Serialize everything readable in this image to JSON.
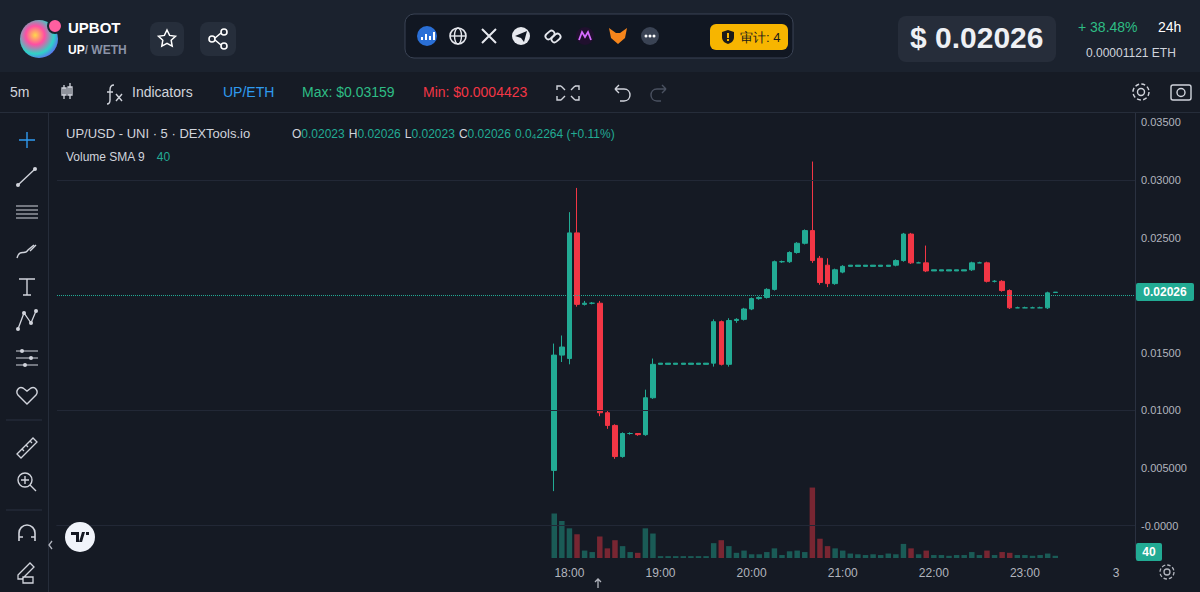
{
  "header": {
    "token": "UPBOT",
    "base": "UP",
    "quote": "/ WETH",
    "audit": "审计: 4",
    "price": "$ 0.02026",
    "change_24h": "+ 38.48%",
    "period": "24h",
    "price_eth": "0.00001121",
    "eth_unit": "ETH"
  },
  "toolbar": {
    "interval": "5m",
    "indicators": "Indicators",
    "pair": "UP/ETH",
    "max": "Max: $0.03159",
    "min": "Min: $0.0004423"
  },
  "chart_data": {
    "type": "candlestick",
    "title": "UP/USD - UNI · 5 · DEXTools.io",
    "ohlc_readout": [
      {
        "key": "O",
        "value": "0.02023"
      },
      {
        "key": "H",
        "value": "0.02026"
      },
      {
        "key": "L",
        "value": "0.02023"
      },
      {
        "key": "C",
        "value": "0.02026"
      }
    ],
    "change": "0.0₄2264 (+0.11%)",
    "x": [
      null,
      null,
      null,
      null,
      null,
      null,
      null,
      null,
      null,
      null,
      null,
      null,
      null,
      null,
      null,
      null,
      null,
      null,
      null,
      null,
      null,
      null,
      null,
      null,
      null,
      null,
      null,
      null,
      null,
      null,
      null,
      null,
      null,
      null,
      null,
      null,
      null,
      null,
      null,
      null,
      null,
      null,
      null,
      null,
      null,
      null,
      null,
      null,
      null,
      null,
      null,
      null,
      null,
      null,
      null,
      null,
      null,
      null,
      null,
      null,
      null,
      null,
      null,
      null,
      null,
      null,
      null,
      "18:00",
      null,
      null,
      null,
      null,
      null,
      null,
      null,
      null,
      null,
      null,
      null,
      "19:00",
      null,
      null,
      null,
      null,
      null,
      null,
      null,
      null,
      null,
      null,
      null,
      "20:00",
      null,
      null,
      null,
      null,
      null,
      null,
      null,
      null,
      null,
      null,
      null,
      "21:00",
      null,
      null,
      null,
      null,
      null,
      null,
      null,
      null,
      null,
      null,
      null,
      "22:00",
      null,
      null,
      null,
      null,
      null,
      null,
      null,
      null,
      null,
      null,
      null,
      "23:00",
      null,
      null,
      null,
      null,
      null,
      null,
      null,
      null,
      null,
      null,
      null,
      "3",
      null,
      null
    ],
    "series": [
      {
        "type": "candlestick",
        "color": {
          "up": "#22ab94",
          "down": "#f23645"
        },
        "values": [
          null,
          null,
          null,
          null,
          null,
          null,
          null,
          null,
          null,
          null,
          null,
          null,
          null,
          null,
          null,
          null,
          null,
          null,
          null,
          null,
          null,
          null,
          null,
          null,
          null,
          null,
          null,
          null,
          null,
          null,
          null,
          null,
          null,
          null,
          null,
          null,
          null,
          null,
          null,
          null,
          null,
          null,
          null,
          null,
          null,
          null,
          null,
          null,
          null,
          null,
          null,
          null,
          null,
          null,
          null,
          null,
          null,
          null,
          null,
          null,
          null,
          null,
          null,
          null,
          null,
          [
            0.0048,
            0.0158,
            0.003,
            0.0148
          ],
          [
            0.0148,
            0.0165,
            0.0142,
            0.0155
          ],
          [
            0.0145,
            0.0272,
            0.014,
            0.0254
          ],
          [
            0.0254,
            0.0293,
            0.019,
            0.0192
          ],
          [
            0.0192,
            0.0195,
            0.0191,
            0.0193
          ],
          [
            0.0193,
            0.0194,
            0.0192,
            0.0193
          ],
          [
            0.0193,
            0.0195,
            0.0095,
            0.0098
          ],
          [
            0.0098,
            0.01,
            0.0084,
            0.0087
          ],
          [
            0.0087,
            0.0088,
            0.0058,
            0.006
          ],
          [
            0.006,
            0.0081,
            0.0059,
            0.008
          ],
          [
            0.008,
            0.0081,
            0.0079,
            0.008
          ],
          [
            0.008,
            0.008,
            0.0078,
            0.0079
          ],
          [
            0.0079,
            0.0118,
            0.0078,
            0.0111
          ],
          [
            0.0111,
            0.0145,
            0.011,
            0.014
          ],
          [
            0.014,
            0.0141,
            0.014,
            0.0141
          ],
          [
            0.014,
            0.0141,
            0.014,
            0.0141
          ],
          [
            0.014,
            0.0141,
            0.014,
            0.0141
          ],
          [
            0.014,
            0.0141,
            0.014,
            0.0141
          ],
          [
            0.014,
            0.0141,
            0.014,
            0.0141
          ],
          [
            0.014,
            0.0141,
            0.014,
            0.0141
          ],
          [
            0.014,
            0.0141,
            0.014,
            0.0141
          ],
          [
            0.0141,
            0.0179,
            0.0138,
            0.0177
          ],
          [
            0.0177,
            0.0178,
            0.0139,
            0.014
          ],
          [
            0.014,
            0.018,
            0.0138,
            0.0178
          ],
          [
            0.0178,
            0.018,
            0.0176,
            0.0179
          ],
          [
            0.0179,
            0.0189,
            0.0178,
            0.0188
          ],
          [
            0.0188,
            0.0198,
            0.0187,
            0.0197
          ],
          [
            0.0197,
            0.0199,
            0.0196,
            0.0198
          ],
          [
            0.0198,
            0.0206,
            0.0197,
            0.0205
          ],
          [
            0.0205,
            0.023,
            0.0204,
            0.0229
          ],
          [
            0.0229,
            0.023,
            0.0228,
            0.0229
          ],
          [
            0.0229,
            0.0238,
            0.0228,
            0.0237
          ],
          [
            0.0237,
            0.0246,
            0.0236,
            0.0245
          ],
          [
            0.0245,
            0.0257,
            0.0244,
            0.0256
          ],
          [
            0.0256,
            0.03159,
            0.0228,
            0.023
          ],
          [
            0.0232,
            0.0234,
            0.0209,
            0.0211
          ],
          [
            0.0226,
            0.0232,
            0.0207,
            0.021
          ],
          [
            0.021,
            0.0223,
            0.0209,
            0.0222
          ],
          [
            0.022,
            0.0226,
            0.0219,
            0.0225
          ],
          [
            0.0225,
            0.0226,
            0.0225,
            0.0226
          ],
          [
            0.0225,
            0.0226,
            0.0225,
            0.0226
          ],
          [
            0.0225,
            0.0226,
            0.0225,
            0.0226
          ],
          [
            0.0225,
            0.0226,
            0.0225,
            0.0226
          ],
          [
            0.0225,
            0.0226,
            0.0225,
            0.0226
          ],
          [
            0.0225,
            0.0226,
            0.0225,
            0.0226
          ],
          [
            0.0226,
            0.0231,
            0.0225,
            0.023
          ],
          [
            0.023,
            0.0254,
            0.0229,
            0.0253
          ],
          [
            0.0253,
            0.0254,
            0.0227,
            0.0228
          ],
          [
            0.0228,
            0.0229,
            0.0228,
            0.0228
          ],
          [
            0.0228,
            0.0243,
            0.022,
            0.0221
          ],
          [
            0.0221,
            0.0222,
            0.0221,
            0.0222
          ],
          [
            0.0221,
            0.0222,
            0.0221,
            0.0222
          ],
          [
            0.0221,
            0.0222,
            0.0221,
            0.0222
          ],
          [
            0.0221,
            0.0222,
            0.0221,
            0.0222
          ],
          [
            0.0221,
            0.0222,
            0.0221,
            0.0222
          ],
          [
            0.0222,
            0.0229,
            0.0221,
            0.0228
          ],
          [
            0.0228,
            0.0229,
            0.0228,
            0.0228
          ],
          [
            0.0228,
            0.0229,
            0.0211,
            0.0212
          ],
          [
            0.0212,
            0.0213,
            0.0211,
            0.0212
          ],
          [
            0.0212,
            0.0213,
            0.0203,
            0.0204
          ],
          [
            0.0204,
            0.0205,
            0.0188,
            0.0189
          ],
          [
            0.0189,
            0.019,
            0.0189,
            0.0189
          ],
          [
            0.0189,
            0.019,
            0.0189,
            0.0189
          ],
          [
            0.0189,
            0.019,
            0.0189,
            0.0189
          ],
          [
            0.0189,
            0.019,
            0.0189,
            0.0189
          ],
          [
            0.0189,
            0.0203,
            0.0188,
            0.0202
          ],
          [
            0.02023,
            0.02026,
            0.02023,
            0.02026
          ],
          null,
          null,
          null,
          null,
          null,
          null,
          null,
          null,
          null,
          null
        ]
      },
      {
        "name": "Volume SMA 9",
        "type": "bar",
        "axis": "y2",
        "values": [
          null,
          null,
          null,
          null,
          null,
          null,
          null,
          null,
          null,
          null,
          null,
          null,
          null,
          null,
          null,
          null,
          null,
          null,
          null,
          null,
          null,
          null,
          null,
          null,
          null,
          null,
          null,
          null,
          null,
          null,
          null,
          null,
          null,
          null,
          null,
          null,
          null,
          null,
          null,
          null,
          null,
          null,
          null,
          null,
          null,
          null,
          null,
          null,
          null,
          null,
          null,
          null,
          null,
          null,
          null,
          null,
          null,
          null,
          null,
          null,
          null,
          null,
          null,
          null,
          null,
          600,
          500,
          400,
          320,
          100,
          80,
          290,
          130,
          240,
          160,
          80,
          70,
          400,
          330,
          25,
          25,
          25,
          25,
          25,
          25,
          25,
          200,
          240,
          160,
          70,
          100,
          50,
          50,
          80,
          130,
          40,
          90,
          100,
          80,
          950,
          260,
          160,
          130,
          100,
          60,
          50,
          40,
          50,
          40,
          60,
          50,
          190,
          130,
          50,
          100,
          40,
          40,
          30,
          40,
          40,
          80,
          40,
          100,
          40,
          80,
          70,
          40,
          40,
          30,
          40,
          60,
          30,
          null,
          null,
          null,
          null,
          null,
          null,
          null,
          null,
          null,
          null
        ]
      }
    ],
    "volume_sma": 40,
    "last_price": {
      "value": 0.02026,
      "label": "0.02026"
    },
    "ylim": [
      -0.0028,
      0.0358
    ],
    "yticks": [
      {
        "value": 0,
        "label": "-0.0000"
      },
      {
        "value": 0.005,
        "label": "0.005000"
      },
      {
        "value": 0.01,
        "label": "0.01000"
      },
      {
        "value": 0.015,
        "label": "0.01500"
      },
      {
        "value": 0.025,
        "label": "0.02500"
      },
      {
        "value": 0.03,
        "label": "0.03000"
      },
      {
        "value": 0.035,
        "label": "0.03500"
      }
    ],
    "y2lim": [
      0,
      6000
    ],
    "grid": true
  }
}
